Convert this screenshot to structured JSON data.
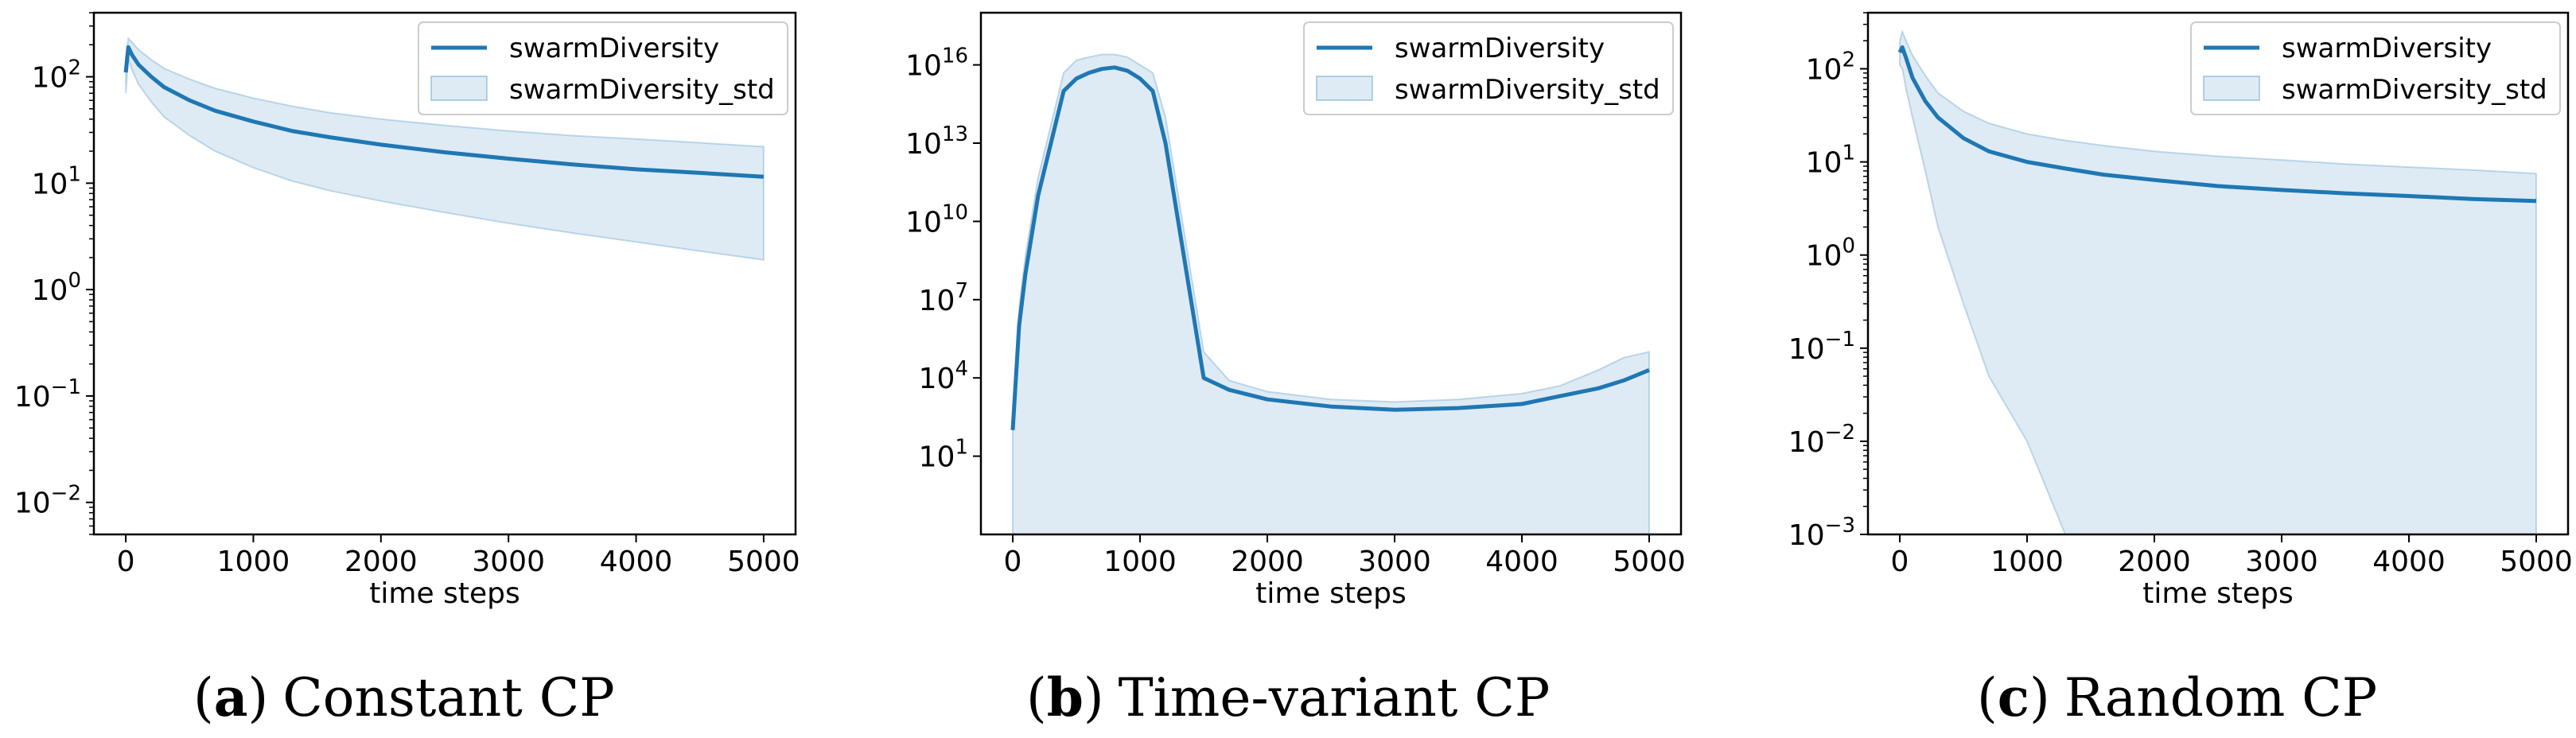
{
  "chart_data": [
    {
      "type": "line",
      "caption": {
        "open": "(",
        "letter": "a",
        "close": ")",
        "text": "Constant CP"
      },
      "xlabel": "time steps",
      "ylabel": "",
      "xlim": [
        -250,
        5250
      ],
      "ylim": [
        0.005,
        400
      ],
      "yscale": "log",
      "xticks": [
        0,
        1000,
        2000,
        3000,
        4000,
        5000
      ],
      "xtick_labels": [
        "0",
        "1000",
        "2000",
        "3000",
        "4000",
        "5000"
      ],
      "yticks": [
        0.01,
        0.1,
        1,
        10,
        100
      ],
      "ytick_labels": [
        {
          "base": "10",
          "exp": "−2"
        },
        {
          "base": "10",
          "exp": "−1"
        },
        {
          "base": "10",
          "exp": "0"
        },
        {
          "base": "10",
          "exp": "1"
        },
        {
          "base": "10",
          "exp": "2"
        }
      ],
      "legend": {
        "position": "upper right",
        "entries": [
          "swarmDiversity",
          "swarmDiversity_std"
        ]
      },
      "series": [
        {
          "name": "swarmDiversity",
          "kind": "line",
          "x": [
            0,
            20,
            50,
            100,
            200,
            300,
            500,
            700,
            1000,
            1300,
            1600,
            2000,
            2500,
            3000,
            3500,
            4000,
            4500,
            5000
          ],
          "y": [
            110,
            190,
            160,
            130,
            100,
            80,
            60,
            48,
            38,
            31,
            27,
            23,
            19.5,
            17,
            15,
            13.5,
            12.5,
            11.5
          ]
        },
        {
          "name": "swarmDiversity_std",
          "kind": "band",
          "x": [
            0,
            20,
            50,
            100,
            200,
            300,
            500,
            700,
            1000,
            1300,
            1600,
            2000,
            2500,
            3000,
            3500,
            4000,
            4500,
            5000
          ],
          "upper": [
            150,
            230,
            210,
            180,
            145,
            120,
            95,
            78,
            63,
            53,
            46,
            40,
            35,
            31,
            28,
            26,
            24,
            22
          ],
          "lower": [
            70,
            150,
            115,
            85,
            58,
            42,
            28,
            20,
            14,
            10.5,
            8.5,
            6.8,
            5.3,
            4.2,
            3.4,
            2.8,
            2.3,
            1.9
          ]
        }
      ]
    },
    {
      "type": "line",
      "caption": {
        "open": "(",
        "letter": "b",
        "close": ")",
        "text": "Time-variant CP"
      },
      "xlabel": "time steps",
      "ylabel": "",
      "xlim": [
        -250,
        5250
      ],
      "ylim": [
        0.01,
        1e+18
      ],
      "yscale": "log",
      "xticks": [
        0,
        1000,
        2000,
        3000,
        4000,
        5000
      ],
      "xtick_labels": [
        "0",
        "1000",
        "2000",
        "3000",
        "4000",
        "5000"
      ],
      "yticks": [
        10,
        10000,
        10000000.0,
        10000000000.0,
        10000000000000.0,
        1e+16
      ],
      "ytick_labels": [
        {
          "base": "10",
          "exp": "1"
        },
        {
          "base": "10",
          "exp": "4"
        },
        {
          "base": "10",
          "exp": "7"
        },
        {
          "base": "10",
          "exp": "10"
        },
        {
          "base": "10",
          "exp": "13"
        },
        {
          "base": "10",
          "exp": "16"
        }
      ],
      "legend": {
        "position": "upper right",
        "entries": [
          "swarmDiversity",
          "swarmDiversity_std"
        ]
      },
      "series": [
        {
          "name": "swarmDiversity",
          "kind": "line",
          "x": [
            0,
            50,
            100,
            200,
            300,
            400,
            500,
            600,
            700,
            800,
            900,
            1000,
            1100,
            1200,
            1300,
            1400,
            1500,
            1700,
            2000,
            2500,
            3000,
            3500,
            4000,
            4300,
            4600,
            4800,
            5000
          ],
          "y": [
            100,
            1000000.0,
            100000000.0,
            100000000000.0,
            10000000000000.0,
            1000000000000000.0,
            3000000000000000.0,
            5000000000000000.0,
            7000000000000000.0,
            8000000000000000.0,
            6000000000000000.0,
            3000000000000000.0,
            1000000000000000.0,
            10000000000000.0,
            10000000000.0,
            10000000.0,
            10000.0,
            3500,
            1500,
            800,
            600,
            700,
            1000,
            2000,
            4000,
            8000,
            20000
          ]
        },
        {
          "name": "swarmDiversity_std",
          "kind": "band",
          "x": [
            0,
            50,
            100,
            200,
            300,
            400,
            500,
            600,
            700,
            800,
            900,
            1000,
            1100,
            1200,
            1300,
            1400,
            1500,
            1700,
            2000,
            2500,
            3000,
            3500,
            4000,
            4300,
            4600,
            4800,
            5000
          ],
          "upper": [
            300,
            5000000.0,
            500000000.0,
            500000000000.0,
            50000000000000.0,
            5000000000000000.0,
            1.5e+16,
            2e+16,
            2.5e+16,
            2.5e+16,
            2e+16,
            1e+16,
            5000000000000000.0,
            100000000000000.0,
            100000000000.0,
            100000000.0,
            100000.0,
            8000,
            3000,
            1500,
            1200,
            1500,
            2500,
            5000,
            20000,
            60000,
            100000
          ],
          "lower": [
            0.01,
            0.01,
            0.01,
            0.01,
            0.01,
            0.01,
            0.01,
            0.01,
            0.01,
            0.01,
            0.01,
            0.01,
            0.01,
            0.01,
            0.01,
            0.01,
            0.01,
            0.01,
            0.01,
            0.01,
            0.01,
            0.01,
            0.01,
            0.01,
            0.01,
            0.01,
            0.01
          ]
        }
      ]
    },
    {
      "type": "line",
      "caption": {
        "open": "(",
        "letter": "c",
        "close": ")",
        "text": "Random CP"
      },
      "xlabel": "time steps",
      "ylabel": "",
      "xlim": [
        -250,
        5250
      ],
      "ylim": [
        0.001,
        400
      ],
      "yscale": "log",
      "xticks": [
        0,
        1000,
        2000,
        3000,
        4000,
        5000
      ],
      "xtick_labels": [
        "0",
        "1000",
        "2000",
        "3000",
        "4000",
        "5000"
      ],
      "yticks": [
        0.001,
        0.01,
        0.1,
        1,
        10,
        100
      ],
      "ytick_labels": [
        {
          "base": "10",
          "exp": "−3"
        },
        {
          "base": "10",
          "exp": "−2"
        },
        {
          "base": "10",
          "exp": "−1"
        },
        {
          "base": "10",
          "exp": "0"
        },
        {
          "base": "10",
          "exp": "1"
        },
        {
          "base": "10",
          "exp": "2"
        }
      ],
      "legend": {
        "position": "upper right",
        "entries": [
          "swarmDiversity",
          "swarmDiversity_std"
        ]
      },
      "series": [
        {
          "name": "swarmDiversity",
          "kind": "line",
          "x": [
            0,
            20,
            50,
            100,
            200,
            300,
            500,
            700,
            1000,
            1300,
            1600,
            2000,
            2500,
            3000,
            3500,
            4000,
            4500,
            5000
          ],
          "y": [
            150,
            170,
            130,
            80,
            45,
            30,
            18,
            13,
            10,
            8.5,
            7.3,
            6.4,
            5.5,
            5,
            4.6,
            4.3,
            4,
            3.8
          ]
        },
        {
          "name": "swarmDiversity_std",
          "kind": "band",
          "x": [
            0,
            20,
            50,
            100,
            200,
            300,
            500,
            700,
            1000,
            1300,
            1600,
            2000,
            2500,
            3000,
            3500,
            4000,
            4500,
            5000
          ],
          "upper": [
            200,
            250,
            200,
            140,
            85,
            55,
            35,
            26,
            20,
            17,
            15,
            13,
            11.5,
            10.5,
            9.5,
            8.8,
            8.2,
            7.5
          ],
          "lower": [
            110,
            100,
            60,
            30,
            8,
            2,
            0.3,
            0.05,
            0.01,
            0.001,
            0.001,
            0.001,
            0.001,
            0.001,
            0.001,
            0.001,
            0.001,
            0.001
          ]
        }
      ]
    }
  ],
  "colors": {
    "line": "#1f77b4",
    "band": "#1f77b4",
    "band_opacity": 0.15,
    "axes": "#000000"
  }
}
